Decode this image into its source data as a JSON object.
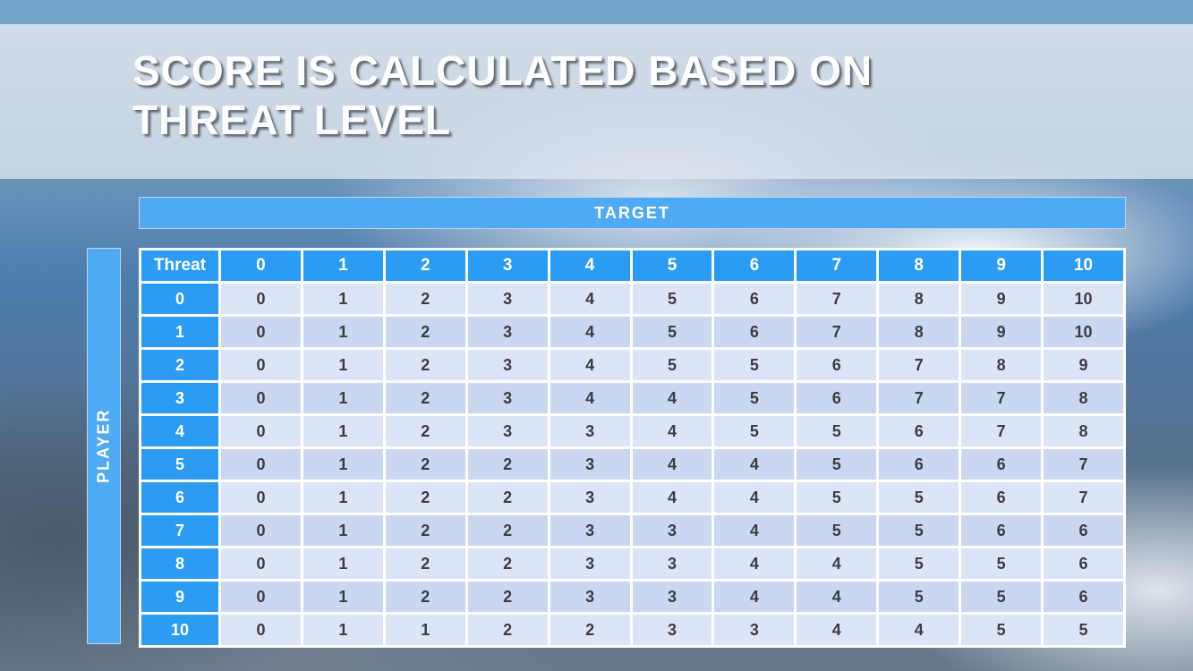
{
  "title": {
    "line1": "SCORE IS CALCULATED BASED ON",
    "line2": "THREAT LEVEL"
  },
  "matrix": {
    "target_label": "TARGET",
    "player_label": "PLAYER",
    "corner_label": "Threat",
    "col_headers": [
      "0",
      "1",
      "2",
      "3",
      "4",
      "5",
      "6",
      "7",
      "8",
      "9",
      "10"
    ],
    "rows": [
      {
        "header": "0",
        "cells": [
          "0",
          "1",
          "2",
          "3",
          "4",
          "5",
          "6",
          "7",
          "8",
          "9",
          "10"
        ]
      },
      {
        "header": "1",
        "cells": [
          "0",
          "1",
          "2",
          "3",
          "4",
          "5",
          "6",
          "7",
          "8",
          "9",
          "10"
        ]
      },
      {
        "header": "2",
        "cells": [
          "0",
          "1",
          "2",
          "3",
          "4",
          "5",
          "5",
          "6",
          "7",
          "8",
          "9"
        ]
      },
      {
        "header": "3",
        "cells": [
          "0",
          "1",
          "2",
          "3",
          "4",
          "4",
          "5",
          "6",
          "7",
          "7",
          "8"
        ]
      },
      {
        "header": "4",
        "cells": [
          "0",
          "1",
          "2",
          "3",
          "3",
          "4",
          "5",
          "5",
          "6",
          "7",
          "8"
        ]
      },
      {
        "header": "5",
        "cells": [
          "0",
          "1",
          "2",
          "2",
          "3",
          "4",
          "4",
          "5",
          "6",
          "6",
          "7"
        ]
      },
      {
        "header": "6",
        "cells": [
          "0",
          "1",
          "2",
          "2",
          "3",
          "4",
          "4",
          "5",
          "5",
          "6",
          "7"
        ]
      },
      {
        "header": "7",
        "cells": [
          "0",
          "1",
          "2",
          "2",
          "3",
          "3",
          "4",
          "5",
          "5",
          "6",
          "6"
        ]
      },
      {
        "header": "8",
        "cells": [
          "0",
          "1",
          "2",
          "2",
          "3",
          "3",
          "4",
          "4",
          "5",
          "5",
          "6"
        ]
      },
      {
        "header": "9",
        "cells": [
          "0",
          "1",
          "2",
          "2",
          "3",
          "3",
          "4",
          "4",
          "5",
          "5",
          "6"
        ]
      },
      {
        "header": "10",
        "cells": [
          "0",
          "1",
          "1",
          "2",
          "2",
          "3",
          "3",
          "4",
          "4",
          "5",
          "5"
        ]
      }
    ]
  },
  "colors": {
    "top_strip": "#76a3c9",
    "header_blue": "#2b9cf2",
    "bar_blue": "#4fa9f3",
    "row_light": "#dbe5f7",
    "row_dark": "#c9d7f0",
    "title_text": "#fefefe"
  }
}
